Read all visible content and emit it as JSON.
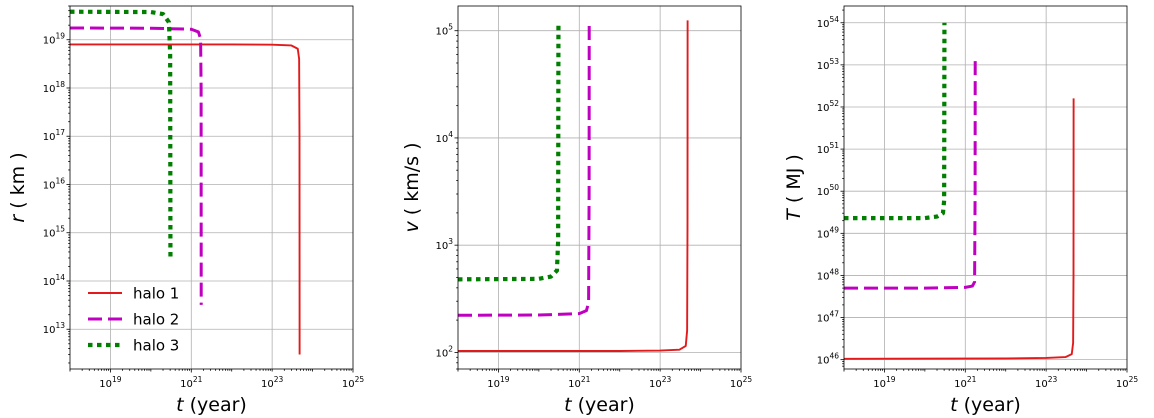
{
  "chart_data": [
    {
      "type": "line",
      "xlabel": "t (year)",
      "ylabel": "r ( km )",
      "xscale": "log",
      "yscale": "log",
      "xlim": [
        1e+18,
        1e+25
      ],
      "ylim": [
        1500000000000.0,
        5e+19
      ],
      "x_ticks": [
        1e+19,
        1e+21,
        1e+23,
        1e+25
      ],
      "y_ticks": [
        10000000000000.0,
        100000000000000.0,
        1000000000000000.0,
        1e+16,
        1e+17,
        1e+18,
        1e+19
      ],
      "grid": true,
      "legend": {
        "position": "bottom-left",
        "entries": [
          "halo 1",
          "halo 2",
          "halo 3"
        ]
      },
      "series": [
        {
          "name": "halo 1",
          "color": "#e31a1c",
          "style": "solid",
          "x": [
            1e+18,
            1e+22,
            1e+23,
            3e+23,
            4.3e+23,
            4.65e+23,
            4.75e+23,
            4.78e+23
          ],
          "y": [
            8e+18,
            8e+18,
            7.9e+18,
            7.6e+18,
            6.5e+18,
            4e+18,
            1e+17,
            3000000000000.0
          ]
        },
        {
          "name": "halo 2",
          "color": "#c000c0",
          "style": "dashed",
          "x": [
            1e+18,
            1e+20,
            1e+21,
            1.5e+21,
            1.7e+21,
            1.75e+21,
            1.76e+21
          ],
          "y": [
            1.75e+19,
            1.73e+19,
            1.65e+19,
            1.45e+19,
            1.05e+19,
            1e+18,
            32000000000000.0
          ]
        },
        {
          "name": "halo 3",
          "color": "#007f00",
          "style": "dotted",
          "x": [
            1e+18,
            1e+20,
            2e+20,
            2.8e+20,
            3e+20,
            3.05e+20
          ],
          "y": [
            3.8e+19,
            3.75e+19,
            3.4e+19,
            2.3e+19,
            5e+18,
            300000000000000.0
          ]
        }
      ]
    },
    {
      "type": "line",
      "xlabel": "t (year)",
      "ylabel": "v ( km/s )",
      "xscale": "log",
      "yscale": "log",
      "xlim": [
        1e+18,
        1e+25
      ],
      "ylim": [
        70,
        170000.0
      ],
      "x_ticks": [
        1e+19,
        1e+21,
        1e+23,
        1e+25
      ],
      "y_ticks": [
        100.0,
        1000.0,
        10000.0,
        100000.0
      ],
      "grid": true,
      "series": [
        {
          "name": "halo 1",
          "color": "#e31a1c",
          "style": "solid",
          "x": [
            1e+18,
            1e+22,
            1e+23,
            3e+23,
            4.3e+23,
            4.65e+23,
            4.75e+23,
            4.78e+23
          ],
          "y": [
            103,
            103,
            104,
            106,
            115,
            160,
            1500,
            125000.0
          ]
        },
        {
          "name": "halo 2",
          "color": "#c000c0",
          "style": "dashed",
          "x": [
            1e+18,
            1e+20,
            1e+21,
            1.5e+21,
            1.7e+21,
            1.75e+21,
            1.76e+21
          ],
          "y": [
            222,
            223,
            230,
            245,
            290,
            3000,
            120000.0
          ]
        },
        {
          "name": "halo 3",
          "color": "#007f00",
          "style": "dotted",
          "x": [
            1e+18,
            1e+20,
            2e+20,
            2.8e+20,
            3e+20,
            3.05e+20
          ],
          "y": [
            480,
            485,
            510,
            580,
            1100,
            115000.0
          ]
        }
      ]
    },
    {
      "type": "line",
      "xlabel": "t (year)",
      "ylabel": "T ( MJ )",
      "xscale": "log",
      "yscale": "log",
      "xlim": [
        1e+18,
        1e+25
      ],
      "ylim": [
        6e+45,
        2.5e+54
      ],
      "x_ticks": [
        1e+19,
        1e+21,
        1e+23,
        1e+25
      ],
      "y_ticks": [
        1e+46,
        1e+47,
        1e+48,
        1e+49,
        1e+50,
        1e+51,
        1e+52,
        1e+53,
        1e+54
      ],
      "grid": true,
      "series": [
        {
          "name": "halo 1",
          "color": "#e31a1c",
          "style": "solid",
          "x": [
            1e+18,
            1e+22,
            1e+23,
            3e+23,
            4.3e+23,
            4.65e+23,
            4.75e+23,
            4.78e+23
          ],
          "y": [
            1.05e+46,
            1.07e+46,
            1.1e+46,
            1.15e+46,
            1.35e+46,
            2.5e+46,
            1e+48,
            1.6e+52
          ]
        },
        {
          "name": "halo 2",
          "color": "#c000c0",
          "style": "dashed",
          "x": [
            1e+18,
            1e+20,
            1e+21,
            1.5e+21,
            1.7e+21,
            1.75e+21,
            1.76e+21
          ],
          "y": [
            5e+47,
            5e+47,
            5.2e+47,
            5.6e+47,
            7e+47,
            1e+50,
            1.4e+53
          ]
        },
        {
          "name": "halo 3",
          "color": "#007f00",
          "style": "dotted",
          "x": [
            1e+18,
            1e+20,
            2e+20,
            2.8e+20,
            3e+20,
            3.05e+20
          ],
          "y": [
            2.3e+49,
            2.3e+49,
            2.5e+49,
            3e+49,
            6e+49,
            1e+54
          ]
        }
      ]
    }
  ]
}
